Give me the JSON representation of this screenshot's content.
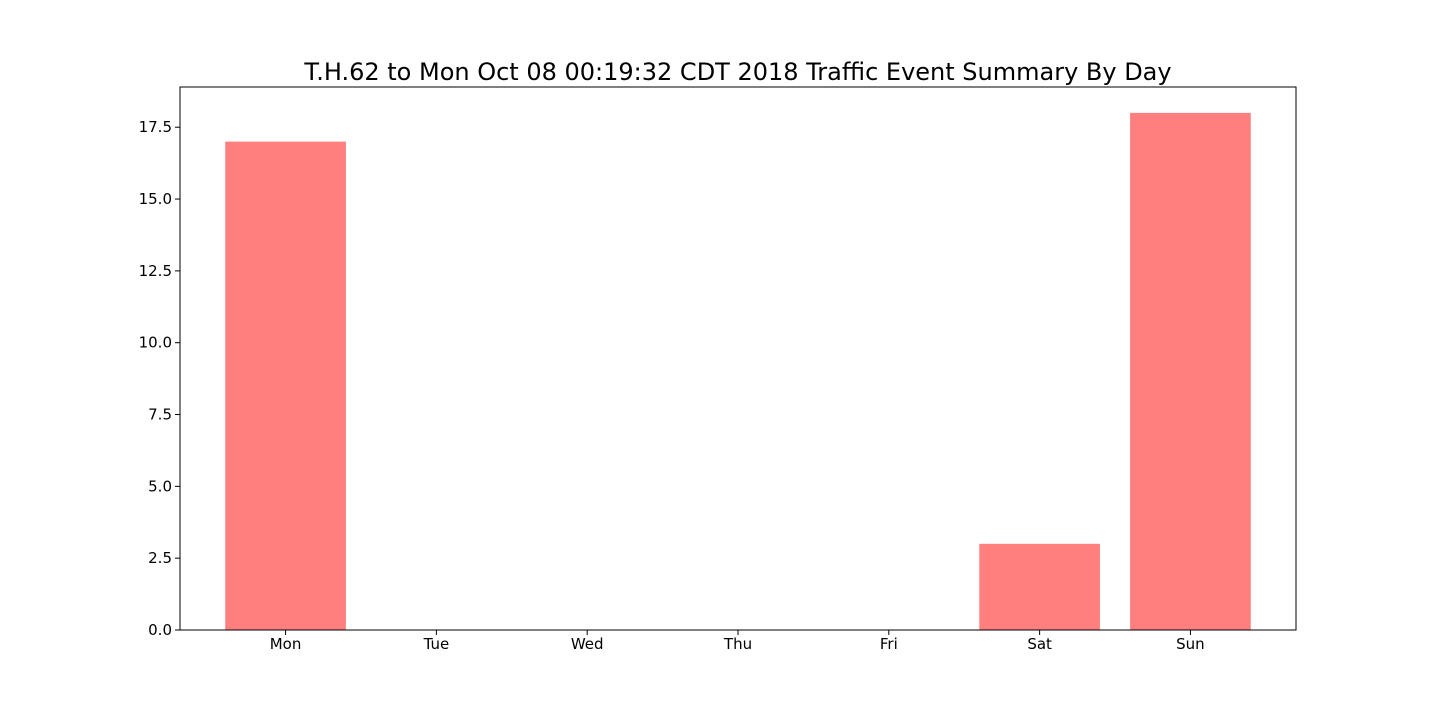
{
  "chart_data": {
    "type": "bar",
    "title": "T.H.62 to Mon Oct 08 00:19:32 CDT 2018 Traffic Event Summary By Day",
    "xlabel": "",
    "ylabel": "",
    "categories": [
      "Mon",
      "Tue",
      "Wed",
      "Thu",
      "Fri",
      "Sat",
      "Sun"
    ],
    "values": [
      17,
      0,
      0,
      0,
      0,
      3,
      18
    ],
    "ylim": [
      0,
      18.9
    ],
    "yticks": [
      0.0,
      2.5,
      5.0,
      7.5,
      10.0,
      12.5,
      15.0,
      17.5
    ],
    "ytick_labels": [
      "0.0",
      "2.5",
      "5.0",
      "7.5",
      "10.0",
      "12.5",
      "15.0",
      "17.5"
    ],
    "bar_color": "#ff7f7f",
    "grid": false,
    "legend": "none"
  }
}
